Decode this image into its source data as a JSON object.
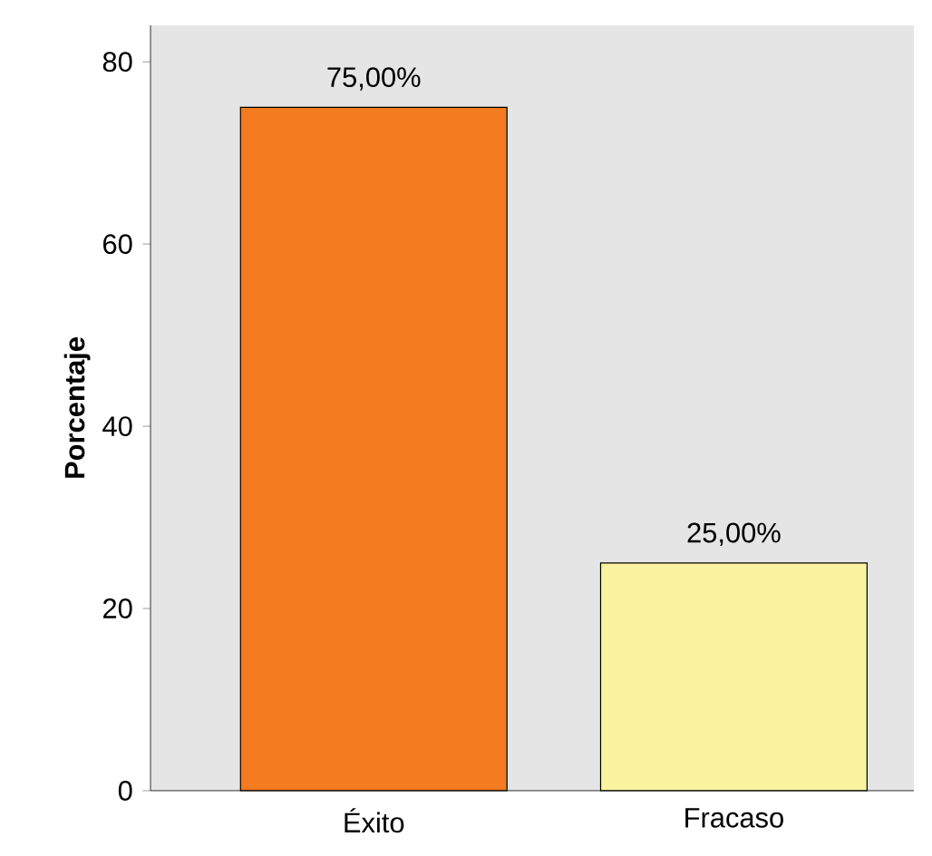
{
  "chart_data": {
    "type": "bar",
    "ylabel": "Porcentaje",
    "categories": [
      "Éxito",
      "Fracaso"
    ],
    "values": [
      75,
      25
    ],
    "colors": [
      "#f47b20",
      "#faf4a0"
    ],
    "value_labels": [
      "75,00%",
      "25,00%"
    ],
    "ylim": [
      0,
      84
    ],
    "yticks": [
      0,
      20,
      40,
      60,
      80
    ],
    "grid": false
  }
}
